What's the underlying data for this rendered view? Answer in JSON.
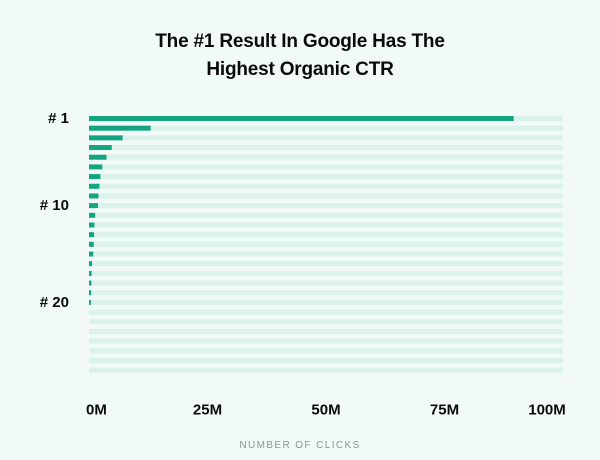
{
  "chart_title_lines": [
    "The #1 Result In Google Has The",
    "Highest Organic CTR"
  ],
  "colors": {
    "background": "#f2faf8",
    "bar": "#12a580",
    "track": "#dbf2ec",
    "text": "#0a0a0a",
    "axis_title": "#8a9490"
  },
  "chart_data": {
    "type": "bar",
    "orientation": "horizontal",
    "title": "The #1 Result In Google Has The Highest Organic CTR",
    "xlabel": "NUMBER OF CLICKS",
    "ylabel": "",
    "xlim": [
      0,
      100000000
    ],
    "x_tick_values": [
      0,
      25000000,
      50000000,
      75000000,
      100000000
    ],
    "x_tick_labels": [
      "0M",
      "25M",
      "50M",
      "75M",
      "100M"
    ],
    "y_tick_labels": [
      {
        "position": 1,
        "label": "# 1"
      },
      {
        "position": 10,
        "label": "# 10"
      },
      {
        "position": 20,
        "label": "# 20"
      }
    ],
    "positions": [
      1,
      2,
      3,
      4,
      5,
      6,
      7,
      8,
      9,
      10,
      11,
      12,
      13,
      14,
      15,
      16,
      17,
      18,
      19,
      20,
      21,
      22,
      23,
      24,
      25,
      26,
      27
    ],
    "values": [
      89600000,
      13000000,
      7100000,
      4800000,
      3700000,
      2800000,
      2400000,
      2200000,
      2000000,
      1900000,
      1300000,
      1150000,
      1050000,
      1000000,
      900000,
      650000,
      550000,
      500000,
      450000,
      400000,
      0,
      0,
      0,
      0,
      0,
      0,
      0
    ],
    "grid": false,
    "legend": "none"
  }
}
